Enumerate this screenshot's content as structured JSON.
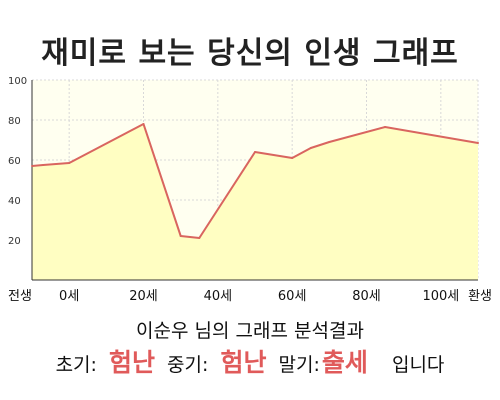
{
  "title": "재미로 보는 당신의 인생 그래프",
  "chart_data": {
    "type": "area",
    "title": "재미로 보는 당신의 인생 그래프",
    "xlabel": "",
    "ylabel": "",
    "categories": [
      "전생",
      "0세",
      "20세",
      "40세",
      "60세",
      "80세",
      "100세",
      "환생"
    ],
    "x": [
      -10,
      0,
      20,
      40,
      60,
      80,
      100,
      110
    ],
    "x_range": [
      -10,
      110
    ],
    "ylim": [
      0,
      100
    ],
    "y_ticks": [
      20,
      40,
      60,
      80,
      100
    ],
    "grid": true,
    "series": [
      {
        "values": [
          {
            "x": -10,
            "y": 57
          },
          {
            "x": -7,
            "y": 57.5
          },
          {
            "x": 0,
            "y": 58.5
          },
          {
            "x": 20,
            "y": 78
          },
          {
            "x": 30,
            "y": 22
          },
          {
            "x": 35,
            "y": 21
          },
          {
            "x": 50,
            "y": 64
          },
          {
            "x": 60,
            "y": 61
          },
          {
            "x": 65,
            "y": 66
          },
          {
            "x": 70,
            "y": 69
          },
          {
            "x": 85,
            "y": 76.5
          },
          {
            "x": 110,
            "y": 68.5
          }
        ]
      }
    ],
    "colors": {
      "line": "#d9655f",
      "fill": "#fffec2",
      "background": "#fffff0",
      "grid": "#d8d8d8"
    }
  },
  "result": {
    "heading": "이순우 님의 그래프 분석결과",
    "early_label": "초기:",
    "early_value": "험난",
    "middle_label": "중기:",
    "middle_value": "험난",
    "late_label": "말기:",
    "late_value": "출세",
    "suffix": "입니다",
    "value_color": "#e05a5a"
  }
}
